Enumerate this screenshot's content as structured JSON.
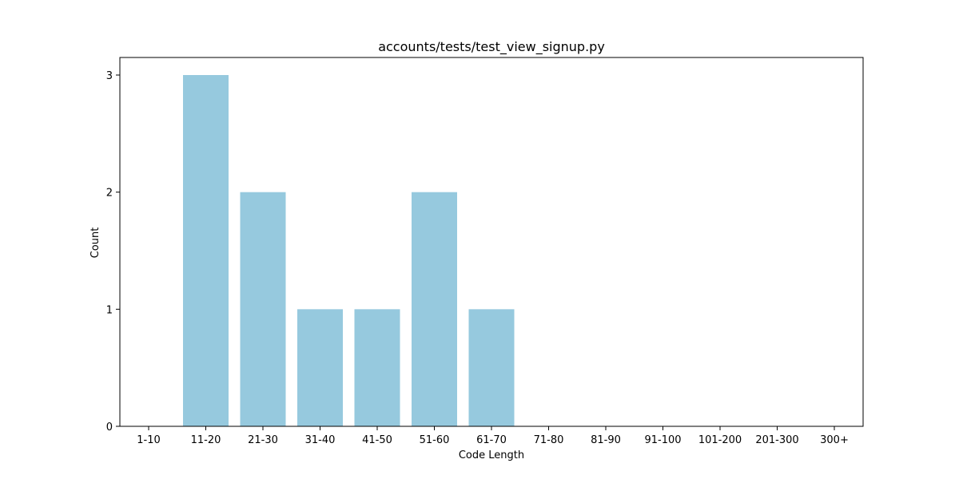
{
  "chart_data": {
    "type": "bar",
    "title": "accounts/tests/test_view_signup.py",
    "xlabel": "Code Length",
    "ylabel": "Count",
    "categories": [
      "1-10",
      "11-20",
      "21-30",
      "31-40",
      "41-50",
      "51-60",
      "61-70",
      "71-80",
      "81-90",
      "91-100",
      "101-200",
      "201-300",
      "300+"
    ],
    "values": [
      0,
      3,
      2,
      1,
      1,
      2,
      1,
      0,
      0,
      0,
      0,
      0,
      0
    ],
    "yticks": [
      0,
      1,
      2,
      3
    ],
    "ylim": [
      0,
      3.15
    ],
    "grid": false,
    "bar_color": "#96c9de"
  }
}
